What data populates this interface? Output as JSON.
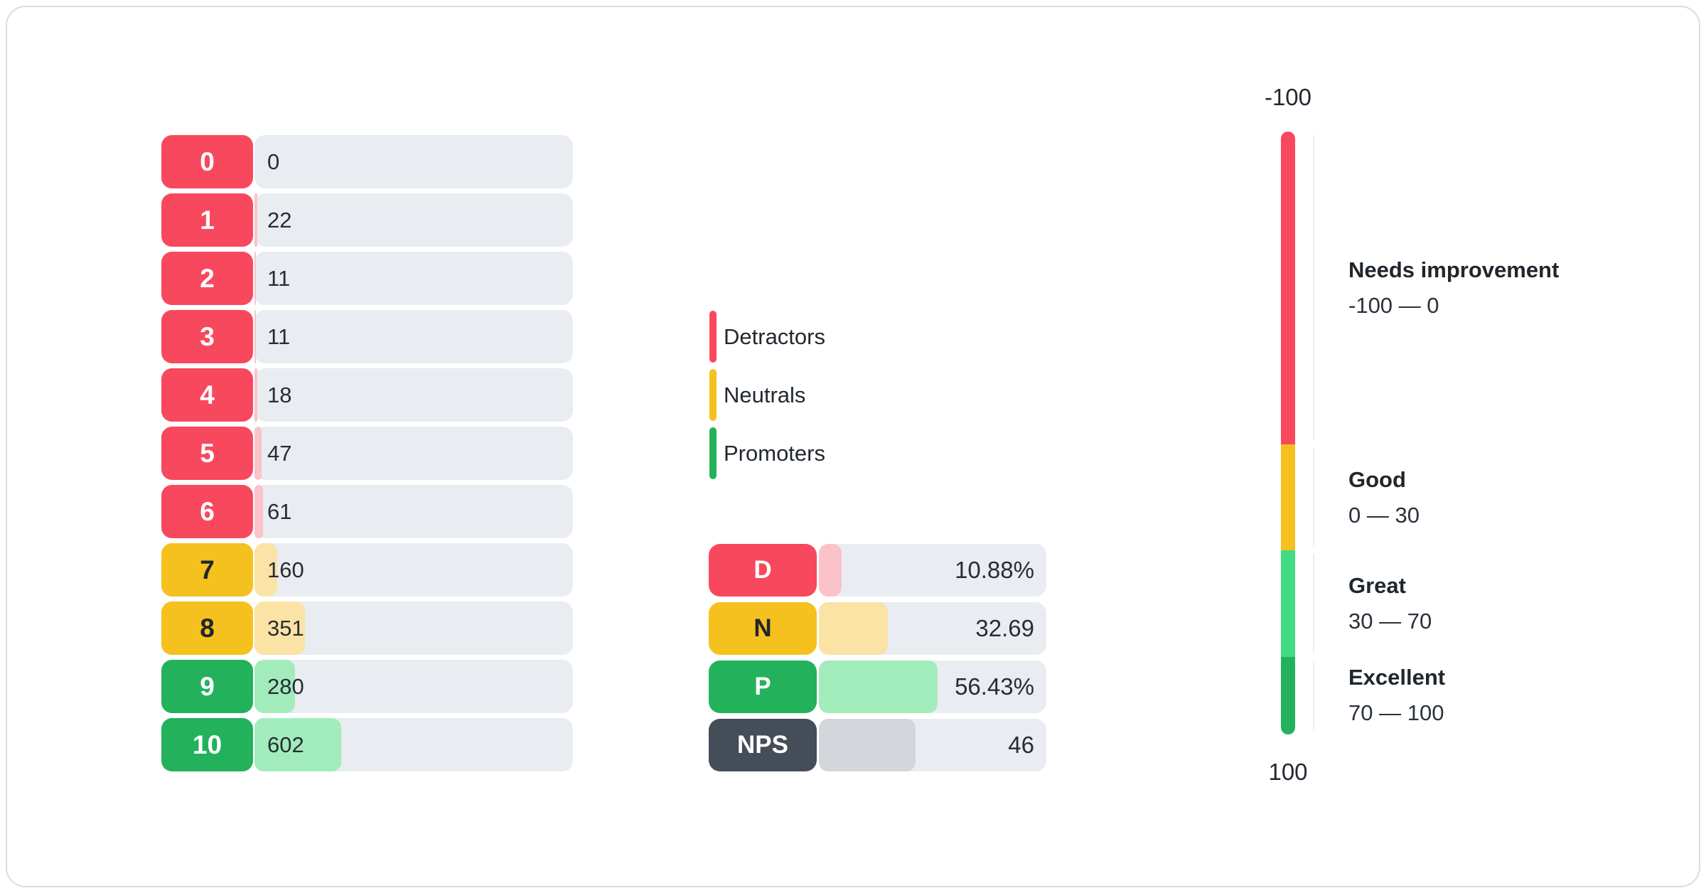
{
  "colors": {
    "detractor": "#F8485E",
    "detractor_fill": "#FBC2CA",
    "neutral": "#F5C11E",
    "neutral_fill": "#FAE3A4",
    "promoter": "#23B25B",
    "promoter_light": "#41DC81",
    "promoter_fill": "#A2ECBB",
    "nps": "#454D59",
    "nps_fill": "#D3D7DC",
    "track": "#E9EDF1",
    "text_on_dark": "#FFFFFF",
    "text_on_light": "#21262C"
  },
  "chart_data": {
    "type": "bar",
    "score_distribution": {
      "categories": [
        "0",
        "1",
        "2",
        "3",
        "4",
        "5",
        "6",
        "7",
        "8",
        "9",
        "10"
      ],
      "values": [
        0,
        22,
        11,
        11,
        18,
        47,
        61,
        160,
        351,
        280,
        602
      ],
      "groups": [
        "detractor",
        "detractor",
        "detractor",
        "detractor",
        "detractor",
        "detractor",
        "detractor",
        "neutral",
        "neutral",
        "promoter",
        "promoter"
      ]
    },
    "legend": {
      "items": [
        {
          "label": "Detractors",
          "group": "detractor"
        },
        {
          "label": "Neutrals",
          "group": "neutral"
        },
        {
          "label": "Promoters",
          "group": "promoter"
        }
      ]
    },
    "summary": {
      "rows": [
        {
          "label": "D",
          "display": "10.88%",
          "value": 10.88,
          "group": "detractor"
        },
        {
          "label": "N",
          "display": "32.69",
          "value": 32.69,
          "group": "neutral"
        },
        {
          "label": "P",
          "display": "56.43%",
          "value": 56.43,
          "group": "promoter"
        },
        {
          "label": "NPS",
          "display": "46",
          "value": 46,
          "group": "nps"
        }
      ]
    },
    "gauge": {
      "axis_top_label": "-100",
      "axis_bottom_label": "100",
      "range": [
        -100,
        100
      ],
      "zones": [
        {
          "title": "Needs improvement",
          "range_label": "-100 — 0",
          "from": -100,
          "to": 0,
          "group": "detractor"
        },
        {
          "title": "Good",
          "range_label": "0 — 30",
          "from": 0,
          "to": 30,
          "group": "neutral"
        },
        {
          "title": "Great",
          "range_label": "30 — 70",
          "from": 30,
          "to": 70,
          "group": "promoter_light"
        },
        {
          "title": "Excellent",
          "range_label": "70 — 100",
          "from": 70,
          "to": 100,
          "group": "promoter"
        }
      ]
    }
  }
}
